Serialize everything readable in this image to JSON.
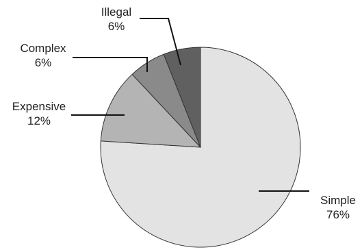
{
  "chart_data": {
    "type": "pie",
    "title": "",
    "slices": [
      {
        "label": "Simple",
        "value": 76,
        "value_label": "76%",
        "color": "#e3e3e3"
      },
      {
        "label": "Expensive",
        "value": 12,
        "value_label": "12%",
        "color": "#b4b4b4"
      },
      {
        "label": "Complex",
        "value": 6,
        "value_label": "6%",
        "color": "#8a8a8a"
      },
      {
        "label": "Illegal",
        "value": 6,
        "value_label": "6%",
        "color": "#606060"
      }
    ],
    "start_angle_deg": 0,
    "direction": "clockwise",
    "legend": "none",
    "outline_color": "#333333",
    "leader_color": "#111111"
  }
}
